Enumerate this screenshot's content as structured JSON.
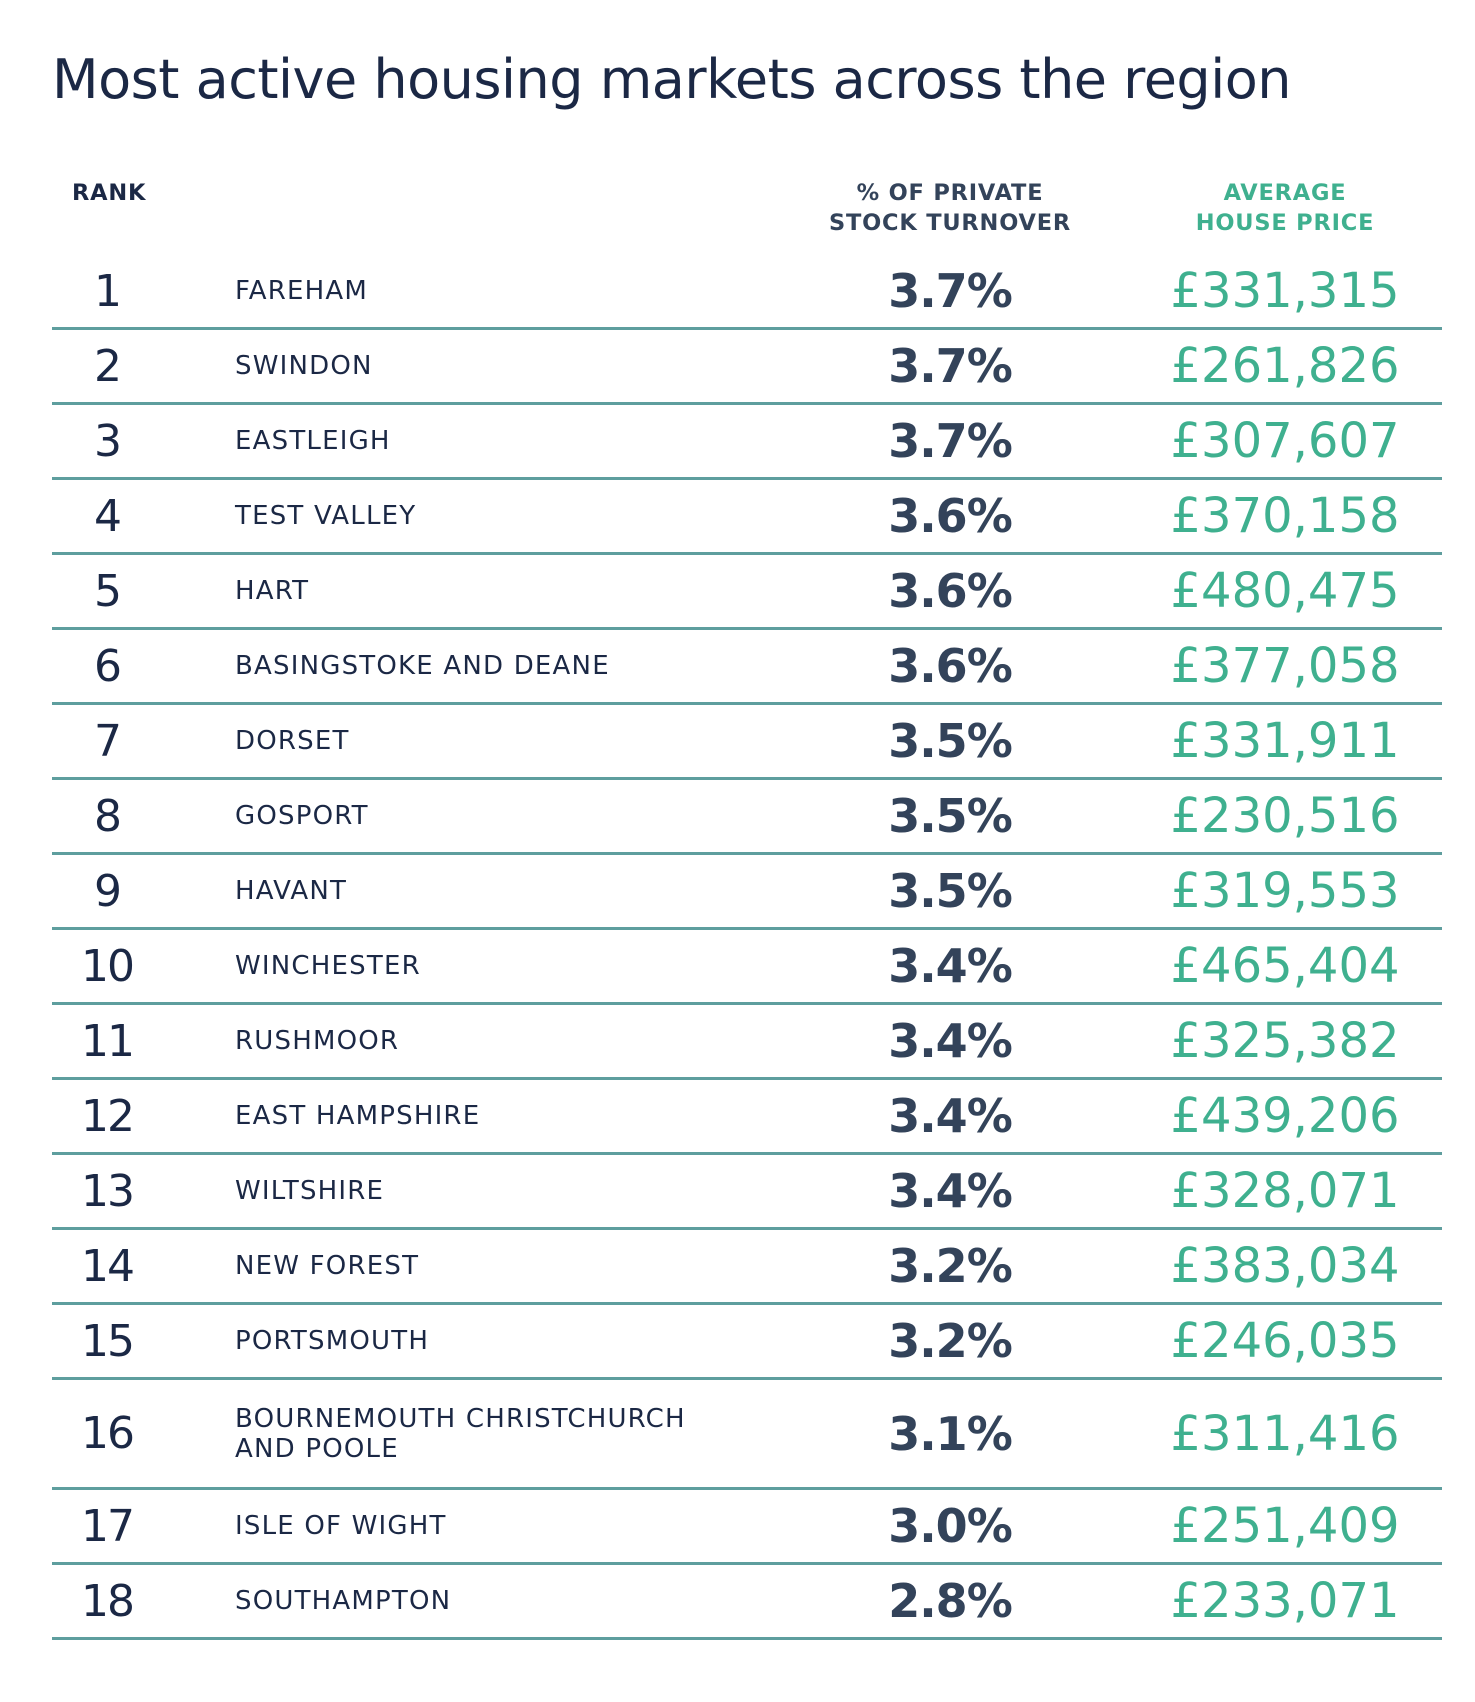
{
  "title": "Most active housing markets across the region",
  "headers": {
    "rank": "RANK",
    "turnover": "% OF PRIVATE\nSTOCK TURNOVER",
    "price": "AVERAGE\nHOUSE PRICE"
  },
  "colors": {
    "navy": "#1b2845",
    "slate": "#33435a",
    "green": "#3fb08f",
    "rule": "#5e9e9e"
  },
  "rows": [
    {
      "rank": "1",
      "name": "FAREHAM",
      "turnover": "3.7%",
      "price": "£331,315"
    },
    {
      "rank": "2",
      "name": "SWINDON",
      "turnover": "3.7%",
      "price": "£261,826"
    },
    {
      "rank": "3",
      "name": "EASTLEIGH",
      "turnover": "3.7%",
      "price": "£307,607"
    },
    {
      "rank": "4",
      "name": "TEST VALLEY",
      "turnover": "3.6%",
      "price": "£370,158"
    },
    {
      "rank": "5",
      "name": "HART",
      "turnover": "3.6%",
      "price": "£480,475"
    },
    {
      "rank": "6",
      "name": "BASINGSTOKE AND DEANE",
      "turnover": "3.6%",
      "price": "£377,058"
    },
    {
      "rank": "7",
      "name": "DORSET",
      "turnover": "3.5%",
      "price": "£331,911"
    },
    {
      "rank": "8",
      "name": "GOSPORT",
      "turnover": "3.5%",
      "price": "£230,516"
    },
    {
      "rank": "9",
      "name": "HAVANT",
      "turnover": "3.5%",
      "price": "£319,553"
    },
    {
      "rank": "10",
      "name": "WINCHESTER",
      "turnover": "3.4%",
      "price": "£465,404"
    },
    {
      "rank": "11",
      "name": "RUSHMOOR",
      "turnover": "3.4%",
      "price": "£325,382"
    },
    {
      "rank": "12",
      "name": "EAST HAMPSHIRE",
      "turnover": "3.4%",
      "price": "£439,206"
    },
    {
      "rank": "13",
      "name": "WILTSHIRE",
      "turnover": "3.4%",
      "price": "£328,071"
    },
    {
      "rank": "14",
      "name": "NEW FOREST",
      "turnover": "3.2%",
      "price": "£383,034"
    },
    {
      "rank": "15",
      "name": "PORTSMOUTH",
      "turnover": "3.2%",
      "price": "£246,035"
    },
    {
      "rank": "16",
      "name": "BOURNEMOUTH CHRISTCHURCH\nAND POOLE",
      "turnover": "3.1%",
      "price": "£311,416"
    },
    {
      "rank": "17",
      "name": "ISLE OF WIGHT",
      "turnover": "3.0%",
      "price": "£251,409"
    },
    {
      "rank": "18",
      "name": "SOUTHAMPTON",
      "turnover": "2.8%",
      "price": "£233,071"
    }
  ]
}
